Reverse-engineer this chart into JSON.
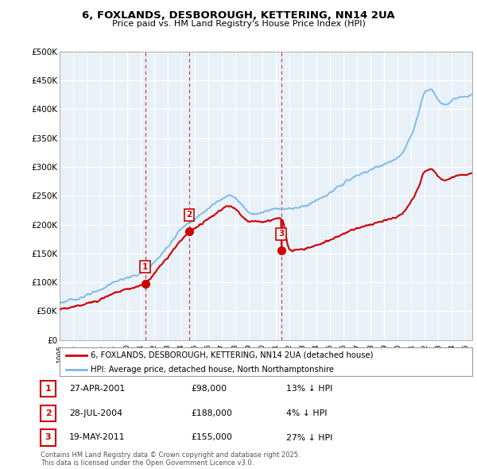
{
  "title": "6, FOXLANDS, DESBOROUGH, KETTERING, NN14 2UA",
  "subtitle": "Price paid vs. HM Land Registry's House Price Index (HPI)",
  "ytick_values": [
    0,
    50000,
    100000,
    150000,
    200000,
    250000,
    300000,
    350000,
    400000,
    450000,
    500000
  ],
  "ylim": [
    0,
    500000
  ],
  "xlim_start": 1995.0,
  "xlim_end": 2025.5,
  "hpi_color": "#7ab8e8",
  "price_color": "#cc0000",
  "purchases": [
    {
      "label": "1",
      "date_x": 2001.32,
      "price": 98000,
      "date_str": "27-APR-2001",
      "price_str": "£98,000",
      "pct_str": "13% ↓ HPI"
    },
    {
      "label": "2",
      "date_x": 2004.57,
      "price": 188000,
      "date_str": "28-JUL-2004",
      "price_str": "£188,000",
      "pct_str": "4% ↓ HPI"
    },
    {
      "label": "3",
      "date_x": 2011.38,
      "price": 155000,
      "date_str": "19-MAY-2011",
      "price_str": "£155,000",
      "pct_str": "27% ↓ HPI"
    }
  ],
  "legend_line1": "6, FOXLANDS, DESBOROUGH, KETTERING, NN14 2UA (detached house)",
  "legend_line2": "HPI: Average price, detached house, North Northamptonshire",
  "footnote": "Contains HM Land Registry data © Crown copyright and database right 2025.\nThis data is licensed under the Open Government Licence v3.0.",
  "background_color": "#ffffff",
  "grid_color": "#d8e4f0"
}
